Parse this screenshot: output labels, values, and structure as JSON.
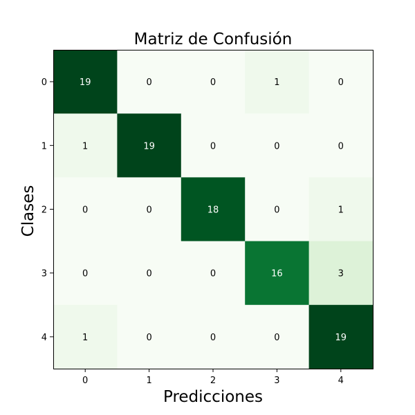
{
  "chart_data": {
    "type": "heatmap",
    "title": "Matriz de Confusión",
    "xlabel": "Predicciones",
    "ylabel": "Clases",
    "x_categories": [
      "0",
      "1",
      "2",
      "3",
      "4"
    ],
    "y_categories": [
      "0",
      "1",
      "2",
      "3",
      "4"
    ],
    "values": [
      [
        19,
        0,
        0,
        1,
        0
      ],
      [
        1,
        19,
        0,
        0,
        0
      ],
      [
        0,
        0,
        18,
        0,
        1
      ],
      [
        0,
        0,
        0,
        16,
        3
      ],
      [
        1,
        0,
        0,
        0,
        19
      ]
    ],
    "colormap": "Greens",
    "color_min": "#f7fcf5",
    "color_max": "#00441b",
    "text_color_dark_cells": "#ffffff",
    "text_color_light_cells": "#000000",
    "grid": false,
    "legend": false
  }
}
